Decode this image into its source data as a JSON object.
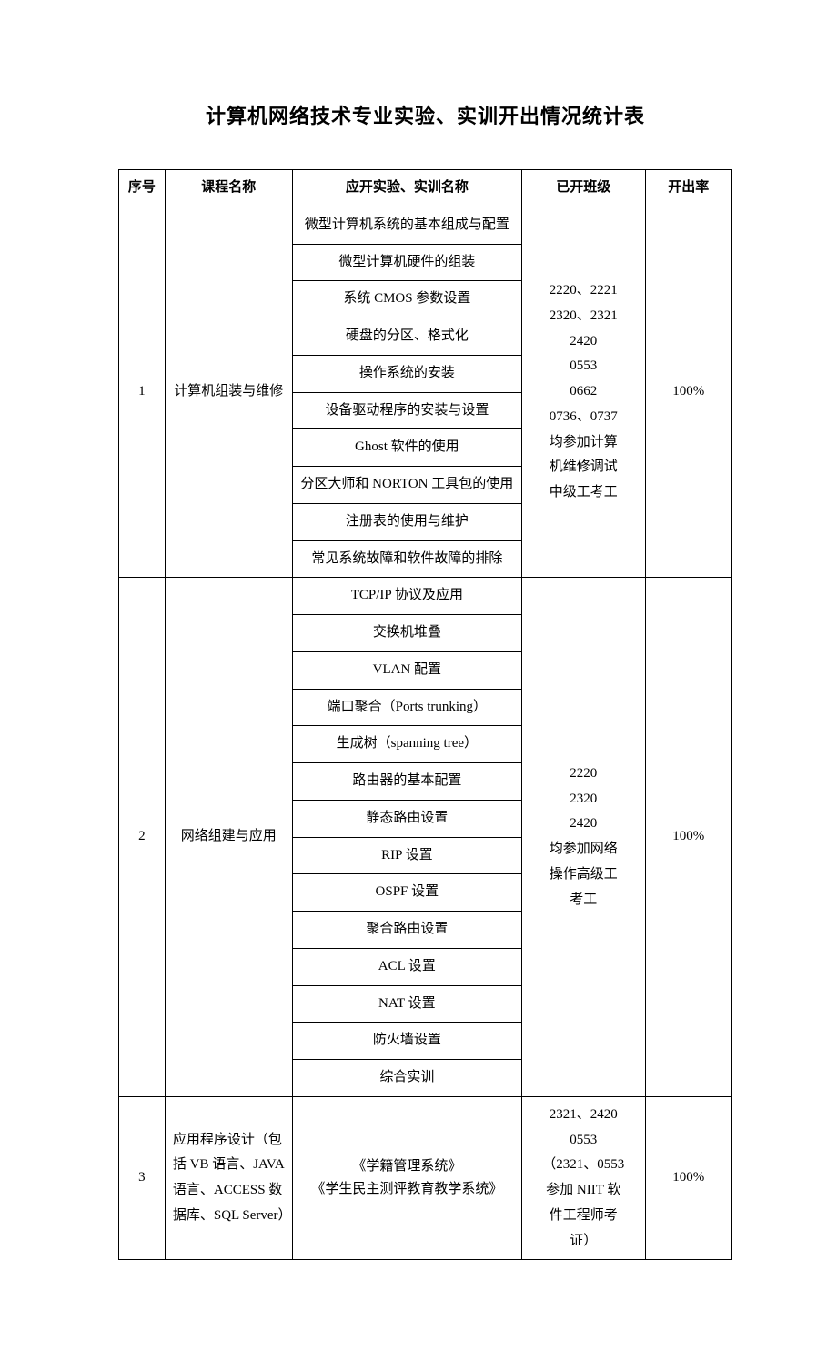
{
  "title": "计算机网络技术专业实验、实训开出情况统计表",
  "headers": {
    "seq": "序号",
    "course": "课程名称",
    "experiment": "应开实验、实训名称",
    "classes": "已开班级",
    "rate": "开出率"
  },
  "rows": [
    {
      "seq": "1",
      "course": "计算机组装与维修",
      "experiments": [
        "微型计算机系统的基本组成与配置",
        "微型计算机硬件的组装",
        "系统 CMOS 参数设置",
        "硬盘的分区、格式化",
        "操作系统的安装",
        "设备驱动程序的安装与设置",
        "Ghost 软件的使用",
        "分区大师和 NORTON 工具包的使用",
        "注册表的使用与维护",
        "常见系统故障和软件故障的排除"
      ],
      "classes": "2220、2221\n2320、2321\n2420\n0553\n0662\n0736、0737\n均参加计算\n机维修调试\n中级工考工",
      "rate": "100%"
    },
    {
      "seq": "2",
      "course": "网络组建与应用",
      "experiments": [
        "TCP/IP 协议及应用",
        "交换机堆叠",
        "VLAN 配置",
        "端口聚合（Ports trunking）",
        "生成树（spanning tree）",
        "路由器的基本配置",
        "静态路由设置",
        "RIP 设置",
        "OSPF 设置",
        "聚合路由设置",
        "ACL 设置",
        "NAT 设置",
        "防火墙设置",
        "综合实训"
      ],
      "classes": "2220\n2320\n2420\n均参加网络\n操作高级工\n考工",
      "rate": "100%"
    },
    {
      "seq": "3",
      "course": "应用程序设计（包括 VB 语言、JAVA语言、ACCESS 数据库、SQL Server）",
      "experiments_combined": "《学籍管理系统》\n《学生民主测评教育教学系统》",
      "classes": "2321、2420\n0553\n（2321、0553\n参加 NIIT 软\n件工程师考\n证）",
      "rate": "100%"
    }
  ]
}
